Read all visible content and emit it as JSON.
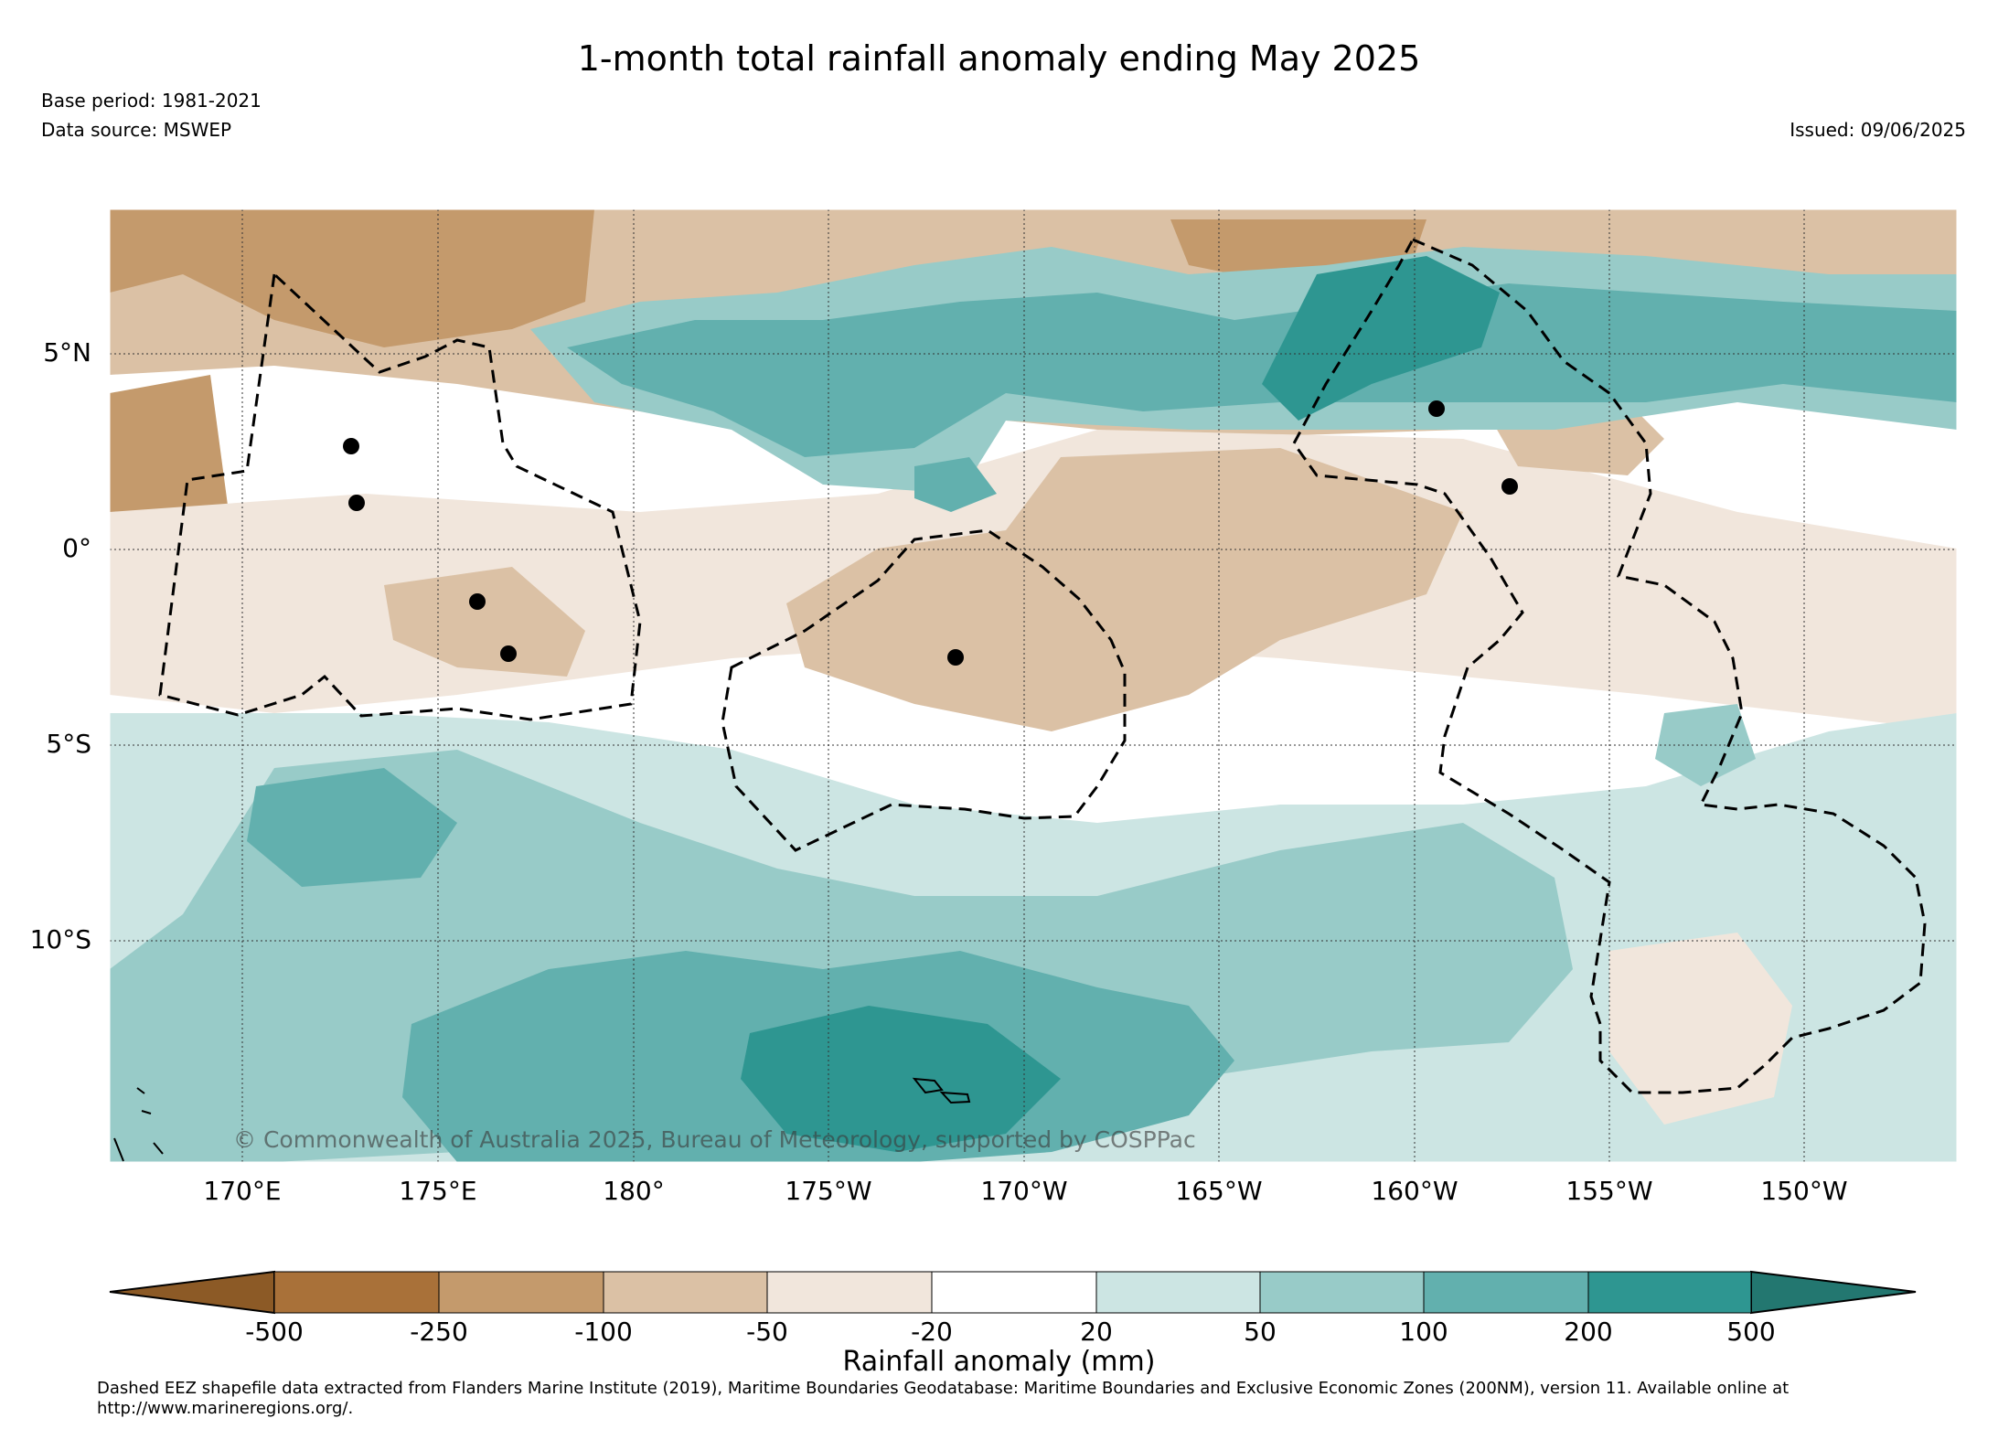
{
  "title": "1-month total rainfall anomaly ending May 2025",
  "base_period": "Base period: 1981-2021",
  "data_source": "Data source: MSWEP",
  "issued": "Issued: 09/06/2025",
  "copyright": "© Commonwealth of Australia 2025, Bureau of Meteorology, supported by COSPPac",
  "lat_ticks": [
    "5°N",
    "0°",
    "5°S",
    "10°S"
  ],
  "lon_ticks": [
    "170°E",
    "175°E",
    "180°",
    "175°W",
    "170°W",
    "165°W",
    "160°W",
    "155°W",
    "150°W"
  ],
  "colorbar": {
    "title": "Rainfall anomaly (mm)",
    "bounds": [
      "-500",
      "-250",
      "-100",
      "-50",
      "-20",
      "20",
      "50",
      "100",
      "200",
      "500"
    ],
    "colors": [
      "#8c5a26",
      "#a97139",
      "#c49a6c",
      "#dbc1a5",
      "#f1e6dc",
      "#ffffff",
      "#cce5e3",
      "#98cbc8",
      "#62b0ae",
      "#2e9691",
      "#237770"
    ]
  },
  "footnote": "Dashed EEZ shapefile data extracted from Flanders Marine Institute (2019), Maritime Boundaries Geodatabase: Maritime Boundaries and Exclusive Economic Zones (200NM), version 11. Available online at http://www.marineregions.org/."
}
